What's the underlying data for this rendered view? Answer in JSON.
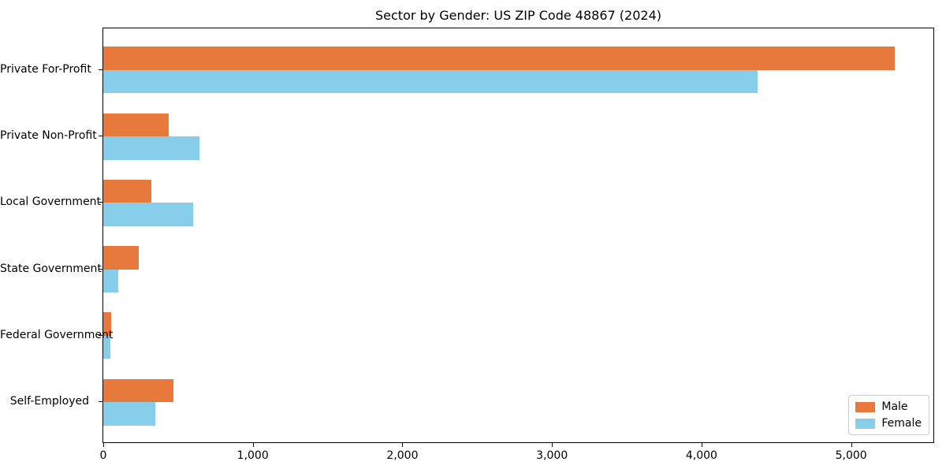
{
  "chart_data": {
    "type": "bar",
    "orientation": "horizontal",
    "title": "Sector by Gender: US ZIP Code 48867 (2024)",
    "categories": [
      "Private For-Profit",
      "Private Non-Profit",
      "Local Government",
      "State Government",
      "Federal Government",
      "Self-Employed"
    ],
    "series": [
      {
        "name": "Male",
        "color": "#E8793D",
        "values": [
          5290,
          435,
          320,
          235,
          52,
          470
        ]
      },
      {
        "name": "Female",
        "color": "#87CEEB",
        "values": [
          4375,
          645,
          600,
          100,
          50,
          350
        ]
      }
    ],
    "xlabel": "",
    "ylabel": "",
    "xlim": [
      0,
      5550
    ],
    "xticks": [
      0,
      1000,
      2000,
      3000,
      4000,
      5000
    ],
    "xtick_labels": [
      "0",
      "1,000",
      "2,000",
      "3,000",
      "4,000",
      "5,000"
    ],
    "legend": {
      "position": "lower right",
      "entries": [
        "Male",
        "Female"
      ]
    },
    "grid": false
  }
}
